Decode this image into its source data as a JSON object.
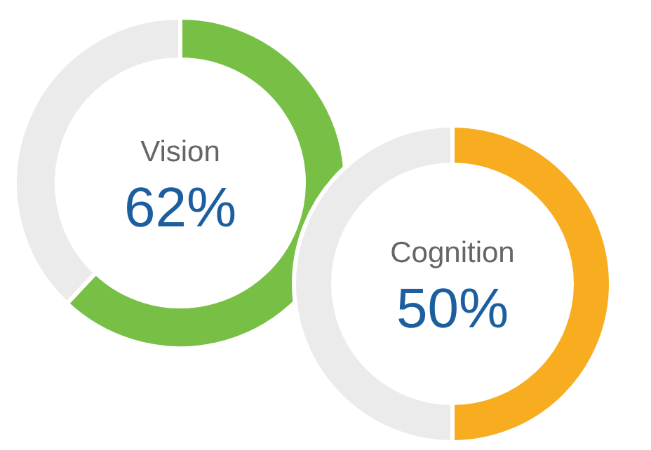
{
  "chart_data": [
    {
      "type": "donut",
      "title": "Vision",
      "categories": [
        null,
        null
      ],
      "values": [
        62,
        38
      ],
      "colors": [
        "#77bf45",
        "#ebebeb"
      ],
      "value_labels": [
        "62%",
        null
      ]
    },
    {
      "type": "donut",
      "title": "Cognition",
      "categories": [
        null,
        null
      ],
      "values": [
        50,
        50
      ],
      "colors": [
        "#f7ad1f",
        "#ebebeb"
      ],
      "value_labels": [
        "50%",
        null
      ]
    }
  ]
}
